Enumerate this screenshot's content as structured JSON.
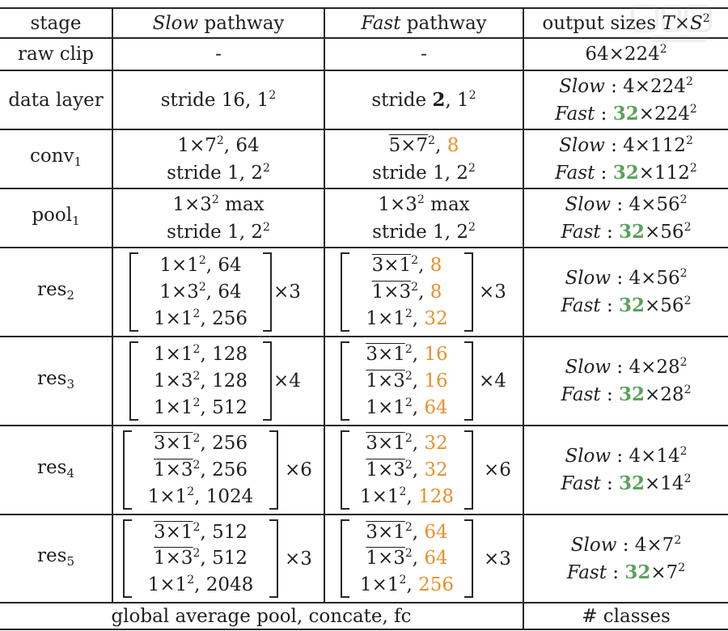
{
  "header": {
    "stage": "stage",
    "slow": {
      "italic": "Slow",
      "rest": " pathway"
    },
    "fast": {
      "italic": "Fast",
      "rest": " pathway"
    },
    "output": {
      "pre": "output sizes ",
      "T": "T",
      "times": "×",
      "S": "S",
      "exp": "2"
    }
  },
  "rows": [
    {
      "id": "raw-clip",
      "stage": [
        {
          "t": "raw clip"
        }
      ],
      "slow": {
        "lines": [
          [
            {
              "t": "-"
            }
          ]
        ]
      },
      "fast": {
        "lines": [
          [
            {
              "t": "-"
            }
          ]
        ]
      },
      "output": [
        [
          {
            "t": "64×224"
          },
          {
            "t": "2",
            "sup": true
          }
        ]
      ]
    },
    {
      "id": "data-layer",
      "stage": [
        {
          "t": "data layer"
        }
      ],
      "slow": {
        "lines": [
          [
            {
              "t": "stride 16, 1"
            },
            {
              "t": "2",
              "sup": true
            }
          ]
        ]
      },
      "fast": {
        "lines": [
          [
            {
              "t": "stride "
            },
            {
              "t": "2",
              "b": true
            },
            {
              "t": ", 1"
            },
            {
              "t": "2",
              "sup": true
            }
          ]
        ]
      },
      "output": [
        [
          {
            "t": "Slow",
            "i": true
          },
          {
            "t": " : 4×224"
          },
          {
            "t": "2",
            "sup": true
          }
        ],
        [
          {
            "t": "Fast",
            "i": true
          },
          {
            "t": " : "
          },
          {
            "t": "32",
            "g": true
          },
          {
            "t": "×224"
          },
          {
            "t": "2",
            "sup": true
          }
        ]
      ]
    },
    {
      "id": "conv1",
      "stage": [
        {
          "t": "conv"
        },
        {
          "t": "1",
          "sub": true
        }
      ],
      "slow": {
        "lines": [
          [
            {
              "t": "1×7"
            },
            {
              "t": "2",
              "sup": true
            },
            {
              "t": ", 64"
            }
          ],
          [
            {
              "t": "stride 1, 2"
            },
            {
              "t": "2",
              "sup": true
            }
          ]
        ]
      },
      "fast": {
        "lines": [
          [
            {
              "t": "5×7",
              "ov": true
            },
            {
              "t": "2",
              "sup": true
            },
            {
              "t": ", "
            },
            {
              "t": "8",
              "o": true
            }
          ],
          [
            {
              "t": "stride 1, 2"
            },
            {
              "t": "2",
              "sup": true
            }
          ]
        ]
      },
      "output": [
        [
          {
            "t": "Slow",
            "i": true
          },
          {
            "t": " : 4×112"
          },
          {
            "t": "2",
            "sup": true
          }
        ],
        [
          {
            "t": "Fast",
            "i": true
          },
          {
            "t": " : "
          },
          {
            "t": "32",
            "g": true
          },
          {
            "t": "×112"
          },
          {
            "t": "2",
            "sup": true
          }
        ]
      ]
    },
    {
      "id": "pool1",
      "stage": [
        {
          "t": "pool"
        },
        {
          "t": "1",
          "sub": true
        }
      ],
      "slow": {
        "lines": [
          [
            {
              "t": "1×3"
            },
            {
              "t": "2",
              "sup": true
            },
            {
              "t": " max"
            }
          ],
          [
            {
              "t": "stride 1, 2"
            },
            {
              "t": "2",
              "sup": true
            }
          ]
        ]
      },
      "fast": {
        "lines": [
          [
            {
              "t": "1×3"
            },
            {
              "t": "2",
              "sup": true
            },
            {
              "t": " max"
            }
          ],
          [
            {
              "t": "stride 1, 2"
            },
            {
              "t": "2",
              "sup": true
            }
          ]
        ]
      },
      "output": [
        [
          {
            "t": "Slow",
            "i": true
          },
          {
            "t": " : 4×56"
          },
          {
            "t": "2",
            "sup": true
          }
        ],
        [
          {
            "t": "Fast",
            "i": true
          },
          {
            "t": " : "
          },
          {
            "t": "32",
            "g": true
          },
          {
            "t": "×56"
          },
          {
            "t": "2",
            "sup": true
          }
        ]
      ]
    },
    {
      "id": "res2",
      "stage": [
        {
          "t": "res"
        },
        {
          "t": "2",
          "sub": true
        }
      ],
      "slow": {
        "bracket": true,
        "times": "×3",
        "lines": [
          [
            {
              "t": "1×1"
            },
            {
              "t": "2",
              "sup": true
            },
            {
              "t": ", 64"
            }
          ],
          [
            {
              "t": "1×3"
            },
            {
              "t": "2",
              "sup": true
            },
            {
              "t": ", 64"
            }
          ],
          [
            {
              "t": "1×1"
            },
            {
              "t": "2",
              "sup": true
            },
            {
              "t": ", 256"
            }
          ]
        ]
      },
      "fast": {
        "bracket": true,
        "times": "×3",
        "lines": [
          [
            {
              "t": "3×1",
              "ov": true
            },
            {
              "t": "2",
              "sup": true
            },
            {
              "t": ", "
            },
            {
              "t": "8",
              "o": true
            }
          ],
          [
            {
              "t": "1×3",
              "ov": true
            },
            {
              "t": "2",
              "sup": true
            },
            {
              "t": ", "
            },
            {
              "t": "8",
              "o": true
            }
          ],
          [
            {
              "t": "1×1"
            },
            {
              "t": "2",
              "sup": true
            },
            {
              "t": ", "
            },
            {
              "t": "32",
              "o": true
            }
          ]
        ]
      },
      "output": [
        [
          {
            "t": "Slow",
            "i": true
          },
          {
            "t": " : 4×56"
          },
          {
            "t": "2",
            "sup": true
          }
        ],
        [
          {
            "t": "Fast",
            "i": true
          },
          {
            "t": " : "
          },
          {
            "t": "32",
            "g": true
          },
          {
            "t": "×56"
          },
          {
            "t": "2",
            "sup": true
          }
        ]
      ]
    },
    {
      "id": "res3",
      "stage": [
        {
          "t": "res"
        },
        {
          "t": "3",
          "sub": true
        }
      ],
      "slow": {
        "bracket": true,
        "times": "×4",
        "lines": [
          [
            {
              "t": "1×1"
            },
            {
              "t": "2",
              "sup": true
            },
            {
              "t": ", 128"
            }
          ],
          [
            {
              "t": "1×3"
            },
            {
              "t": "2",
              "sup": true
            },
            {
              "t": ", 128"
            }
          ],
          [
            {
              "t": "1×1"
            },
            {
              "t": "2",
              "sup": true
            },
            {
              "t": ", 512"
            }
          ]
        ]
      },
      "fast": {
        "bracket": true,
        "times": "×4",
        "lines": [
          [
            {
              "t": "3×1",
              "ov": true
            },
            {
              "t": "2",
              "sup": true
            },
            {
              "t": ", "
            },
            {
              "t": "16",
              "o": true
            }
          ],
          [
            {
              "t": "1×3",
              "ov": true
            },
            {
              "t": "2",
              "sup": true
            },
            {
              "t": ", "
            },
            {
              "t": "16",
              "o": true
            }
          ],
          [
            {
              "t": "1×1"
            },
            {
              "t": "2",
              "sup": true
            },
            {
              "t": ", "
            },
            {
              "t": "64",
              "o": true
            }
          ]
        ]
      },
      "output": [
        [
          {
            "t": "Slow",
            "i": true
          },
          {
            "t": " : 4×28"
          },
          {
            "t": "2",
            "sup": true
          }
        ],
        [
          {
            "t": "Fast",
            "i": true
          },
          {
            "t": " : "
          },
          {
            "t": "32",
            "g": true
          },
          {
            "t": "×28"
          },
          {
            "t": "2",
            "sup": true
          }
        ]
      ]
    },
    {
      "id": "res4",
      "stage": [
        {
          "t": "res"
        },
        {
          "t": "4",
          "sub": true
        }
      ],
      "slow": {
        "bracket": true,
        "times": "×6",
        "lines": [
          [
            {
              "t": "3×1",
              "ov": true
            },
            {
              "t": "2",
              "sup": true
            },
            {
              "t": ", 256"
            }
          ],
          [
            {
              "t": "1×3",
              "ov": true
            },
            {
              "t": "2",
              "sup": true
            },
            {
              "t": ", 256"
            }
          ],
          [
            {
              "t": "1×1"
            },
            {
              "t": "2",
              "sup": true
            },
            {
              "t": ", 1024"
            }
          ]
        ]
      },
      "fast": {
        "bracket": true,
        "times": "×6",
        "lines": [
          [
            {
              "t": "3×1",
              "ov": true
            },
            {
              "t": "2",
              "sup": true
            },
            {
              "t": ", "
            },
            {
              "t": "32",
              "o": true
            }
          ],
          [
            {
              "t": "1×3",
              "ov": true
            },
            {
              "t": "2",
              "sup": true
            },
            {
              "t": ", "
            },
            {
              "t": "32",
              "o": true
            }
          ],
          [
            {
              "t": "1×1"
            },
            {
              "t": "2",
              "sup": true
            },
            {
              "t": ", "
            },
            {
              "t": "128",
              "o": true
            }
          ]
        ]
      },
      "output": [
        [
          {
            "t": "Slow",
            "i": true
          },
          {
            "t": " : 4×14"
          },
          {
            "t": "2",
            "sup": true
          }
        ],
        [
          {
            "t": "Fast",
            "i": true
          },
          {
            "t": " : "
          },
          {
            "t": "32",
            "g": true
          },
          {
            "t": "×14"
          },
          {
            "t": "2",
            "sup": true
          }
        ]
      ]
    },
    {
      "id": "res5",
      "stage": [
        {
          "t": "res"
        },
        {
          "t": "5",
          "sub": true
        }
      ],
      "slow": {
        "bracket": true,
        "times": "×3",
        "lines": [
          [
            {
              "t": "3×1",
              "ov": true
            },
            {
              "t": "2",
              "sup": true
            },
            {
              "t": ", 512"
            }
          ],
          [
            {
              "t": "1×3",
              "ov": true
            },
            {
              "t": "2",
              "sup": true
            },
            {
              "t": ", 512"
            }
          ],
          [
            {
              "t": "1×1"
            },
            {
              "t": "2",
              "sup": true
            },
            {
              "t": ", 2048"
            }
          ]
        ]
      },
      "fast": {
        "bracket": true,
        "times": "×3",
        "lines": [
          [
            {
              "t": "3×1",
              "ov": true
            },
            {
              "t": "2",
              "sup": true
            },
            {
              "t": ", "
            },
            {
              "t": "64",
              "o": true
            }
          ],
          [
            {
              "t": "1×3",
              "ov": true
            },
            {
              "t": "2",
              "sup": true
            },
            {
              "t": ", "
            },
            {
              "t": "64",
              "o": true
            }
          ],
          [
            {
              "t": "1×1"
            },
            {
              "t": "2",
              "sup": true
            },
            {
              "t": ", "
            },
            {
              "t": "256",
              "o": true
            }
          ]
        ]
      },
      "output": [
        [
          {
            "t": "Slow",
            "i": true
          },
          {
            "t": " : 4×7"
          },
          {
            "t": "2",
            "sup": true
          }
        ],
        [
          {
            "t": "Fast",
            "i": true
          },
          {
            "t": " : "
          },
          {
            "t": "32",
            "g": true
          },
          {
            "t": "×7"
          },
          {
            "t": "2",
            "sup": true
          }
        ]
      ]
    }
  ],
  "footer": {
    "main": "global average pool, concate, fc",
    "output": "# classes"
  },
  "colors": {
    "green": "#5aa25c",
    "orange": "#e8902c",
    "rule": "#262626"
  },
  "watermark": {
    "icon": "watermark-logo-icon",
    "text": ""
  }
}
